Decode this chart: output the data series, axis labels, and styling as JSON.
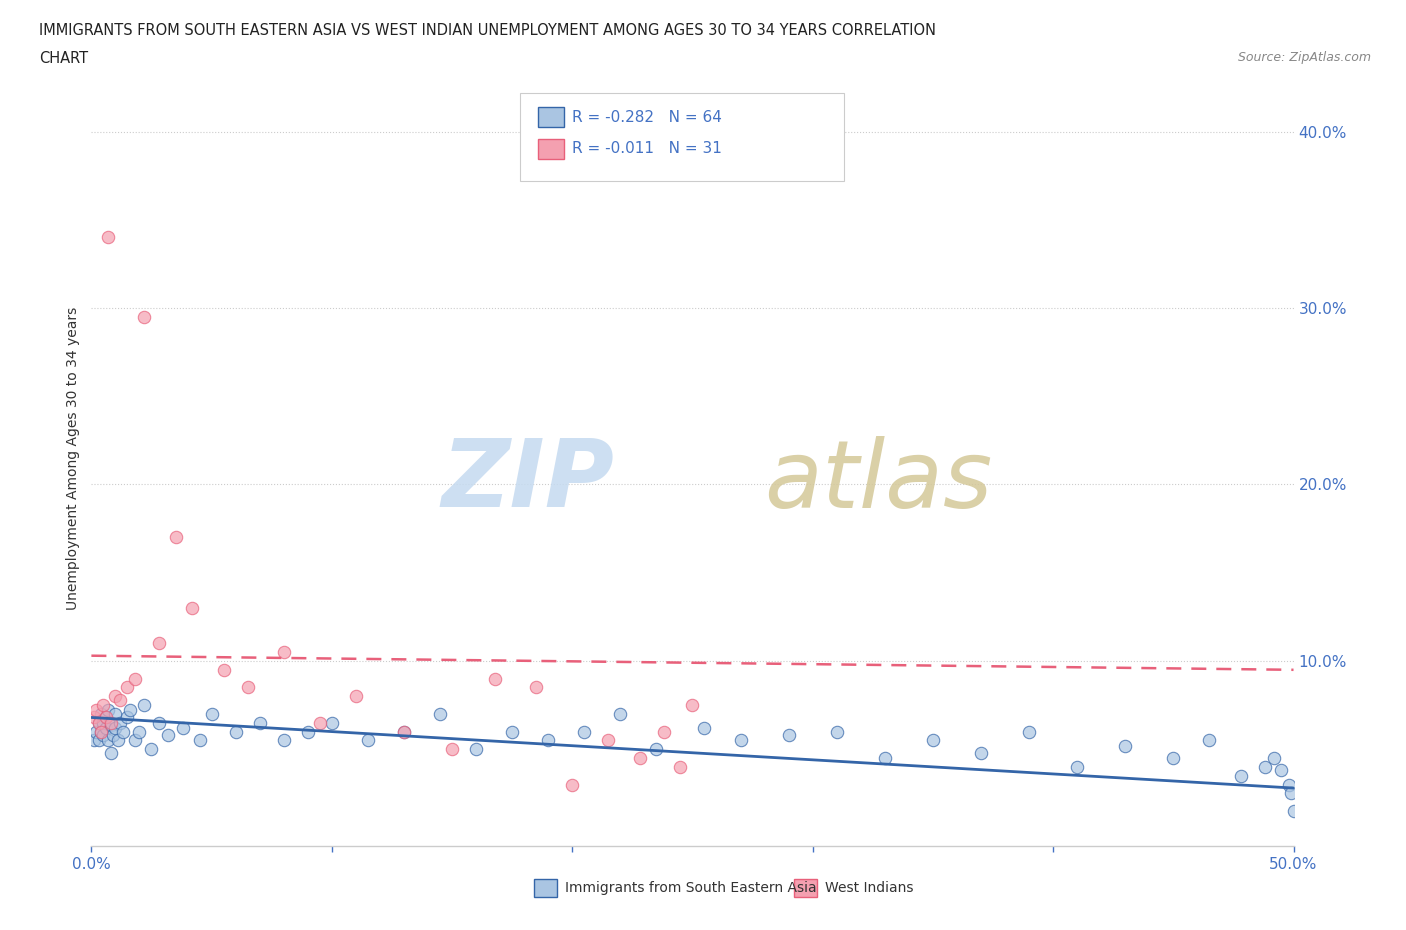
{
  "title_line1": "IMMIGRANTS FROM SOUTH EASTERN ASIA VS WEST INDIAN UNEMPLOYMENT AMONG AGES 30 TO 34 YEARS CORRELATION",
  "title_line2": "CHART",
  "source": "Source: ZipAtlas.com",
  "ylabel": "Unemployment Among Ages 30 to 34 years",
  "ytick_vals": [
    0.1,
    0.2,
    0.3,
    0.4
  ],
  "xlim": [
    0.0,
    0.5
  ],
  "ylim": [
    -0.005,
    0.435
  ],
  "r_sea": -0.282,
  "n_sea": 64,
  "r_wi": -0.011,
  "n_wi": 31,
  "legend_label_sea": "Immigrants from South Eastern Asia",
  "legend_label_wi": "West Indians",
  "color_sea": "#aac5e2",
  "color_wi": "#f4a0b0",
  "line_color_sea": "#3465a8",
  "line_color_wi": "#e8607a",
  "background_color": "#ffffff",
  "sea_x": [
    0.001,
    0.002,
    0.003,
    0.003,
    0.004,
    0.004,
    0.005,
    0.005,
    0.006,
    0.006,
    0.007,
    0.007,
    0.008,
    0.008,
    0.009,
    0.01,
    0.01,
    0.011,
    0.012,
    0.013,
    0.015,
    0.016,
    0.018,
    0.02,
    0.022,
    0.025,
    0.028,
    0.032,
    0.038,
    0.045,
    0.05,
    0.06,
    0.07,
    0.08,
    0.09,
    0.1,
    0.115,
    0.13,
    0.145,
    0.16,
    0.175,
    0.19,
    0.205,
    0.22,
    0.235,
    0.255,
    0.27,
    0.29,
    0.31,
    0.33,
    0.35,
    0.37,
    0.39,
    0.41,
    0.43,
    0.45,
    0.465,
    0.478,
    0.488,
    0.492,
    0.495,
    0.498,
    0.499,
    0.5
  ],
  "sea_y": [
    0.055,
    0.06,
    0.065,
    0.055,
    0.07,
    0.06,
    0.065,
    0.058,
    0.062,
    0.068,
    0.055,
    0.072,
    0.048,
    0.064,
    0.058,
    0.062,
    0.07,
    0.055,
    0.065,
    0.06,
    0.068,
    0.072,
    0.055,
    0.06,
    0.075,
    0.05,
    0.065,
    0.058,
    0.062,
    0.055,
    0.07,
    0.06,
    0.065,
    0.055,
    0.06,
    0.065,
    0.055,
    0.06,
    0.07,
    0.05,
    0.06,
    0.055,
    0.06,
    0.07,
    0.05,
    0.062,
    0.055,
    0.058,
    0.06,
    0.045,
    0.055,
    0.048,
    0.06,
    0.04,
    0.052,
    0.045,
    0.055,
    0.035,
    0.04,
    0.045,
    0.038,
    0.03,
    0.025,
    0.015
  ],
  "wi_x": [
    0.001,
    0.002,
    0.003,
    0.004,
    0.005,
    0.006,
    0.007,
    0.008,
    0.01,
    0.012,
    0.015,
    0.018,
    0.022,
    0.028,
    0.035,
    0.042,
    0.055,
    0.065,
    0.08,
    0.095,
    0.11,
    0.13,
    0.15,
    0.168,
    0.185,
    0.2,
    0.215,
    0.228,
    0.238,
    0.245,
    0.25
  ],
  "wi_y": [
    0.068,
    0.072,
    0.065,
    0.06,
    0.075,
    0.068,
    0.34,
    0.065,
    0.08,
    0.078,
    0.085,
    0.09,
    0.295,
    0.11,
    0.17,
    0.13,
    0.095,
    0.085,
    0.105,
    0.065,
    0.08,
    0.06,
    0.05,
    0.09,
    0.085,
    0.03,
    0.055,
    0.045,
    0.06,
    0.04,
    0.075
  ]
}
